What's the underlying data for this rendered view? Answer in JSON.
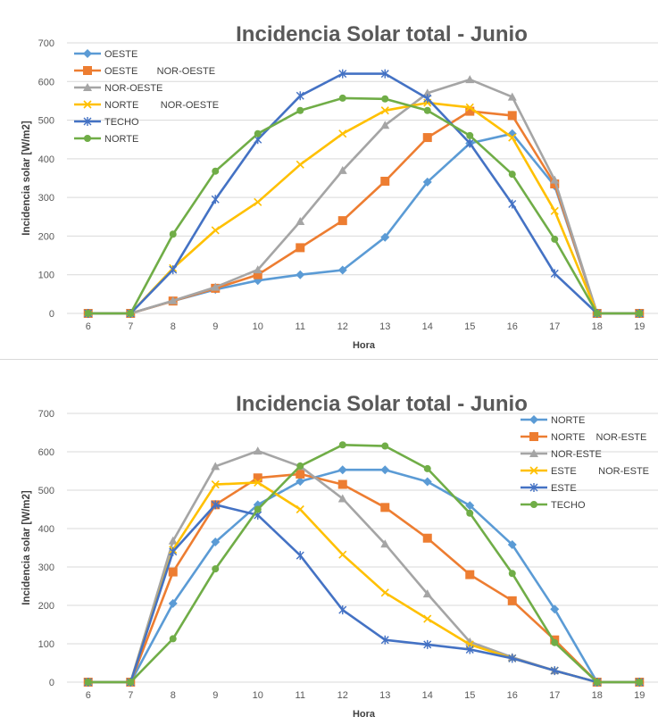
{
  "chart_data": [
    {
      "type": "line",
      "title": "Incidencia Solar total - Junio",
      "xlabel": "Hora",
      "ylabel": "Incidencia solar [W/m2]",
      "categories": [
        6,
        7,
        8,
        9,
        10,
        11,
        12,
        13,
        14,
        15,
        16,
        17,
        18,
        19
      ],
      "ylim": [
        0,
        700
      ],
      "yticks": [
        0,
        100,
        200,
        300,
        400,
        500,
        600,
        700
      ],
      "grid": true,
      "legend_position": "top-left",
      "series": [
        {
          "name": "OESTE",
          "color": "#5b9bd5",
          "marker": "diamond",
          "values": [
            0,
            0,
            32,
            62,
            85,
            100,
            112,
            197,
            340,
            440,
            465,
            330,
            0,
            0
          ]
        },
        {
          "name": "OESTE       NOR-OESTE",
          "color": "#ed7d31",
          "marker": "square",
          "values": [
            0,
            0,
            32,
            65,
            100,
            170,
            240,
            342,
            455,
            523,
            512,
            335,
            0,
            0
          ]
        },
        {
          "name": "NOR-OESTE",
          "color": "#a5a5a5",
          "marker": "triangle",
          "values": [
            0,
            0,
            33,
            68,
            113,
            238,
            370,
            487,
            570,
            605,
            560,
            345,
            0,
            0
          ]
        },
        {
          "name": "NORTE        NOR-OESTE",
          "color": "#ffc000",
          "marker": "x",
          "values": [
            0,
            0,
            117,
            215,
            288,
            385,
            465,
            525,
            545,
            533,
            455,
            265,
            0,
            0
          ]
        },
        {
          "name": "TECHO",
          "color": "#4472c4",
          "marker": "star",
          "values": [
            0,
            0,
            113,
            295,
            450,
            563,
            620,
            620,
            556,
            440,
            283,
            103,
            0,
            0
          ]
        },
        {
          "name": "NORTE",
          "color": "#70ad47",
          "marker": "circle",
          "values": [
            0,
            0,
            205,
            368,
            465,
            525,
            557,
            555,
            525,
            460,
            360,
            192,
            0,
            0
          ]
        }
      ]
    },
    {
      "type": "line",
      "title": "Incidencia Solar total - Junio",
      "xlabel": "Hora",
      "ylabel": "Incidencia solar [W/m2]",
      "categories": [
        6,
        7,
        8,
        9,
        10,
        11,
        12,
        13,
        14,
        15,
        16,
        17,
        18,
        19
      ],
      "ylim": [
        0,
        700
      ],
      "yticks": [
        0,
        100,
        200,
        300,
        400,
        500,
        600,
        700
      ],
      "grid": true,
      "legend_position": "top-right",
      "series": [
        {
          "name": "NORTE",
          "color": "#5b9bd5",
          "marker": "diamond",
          "values": [
            0,
            0,
            205,
            365,
            462,
            523,
            553,
            553,
            522,
            460,
            358,
            190,
            0,
            0
          ]
        },
        {
          "name": "NORTE    NOR-ESTE",
          "color": "#ed7d31",
          "marker": "square",
          "values": [
            0,
            0,
            287,
            462,
            532,
            542,
            515,
            455,
            375,
            280,
            212,
            110,
            0,
            0
          ]
        },
        {
          "name": "NOR-ESTE",
          "color": "#a5a5a5",
          "marker": "triangle",
          "values": [
            0,
            0,
            368,
            562,
            602,
            562,
            478,
            360,
            230,
            105,
            65,
            30,
            0,
            0
          ]
        },
        {
          "name": "ESTE        NOR-ESTE",
          "color": "#ffc000",
          "marker": "x",
          "values": [
            0,
            0,
            345,
            515,
            520,
            450,
            332,
            233,
            165,
            98,
            62,
            30,
            0,
            0
          ]
        },
        {
          "name": "ESTE",
          "color": "#4472c4",
          "marker": "star",
          "values": [
            0,
            0,
            340,
            462,
            435,
            330,
            188,
            110,
            98,
            85,
            62,
            30,
            0,
            0
          ]
        },
        {
          "name": "TECHO",
          "color": "#70ad47",
          "marker": "circle",
          "values": [
            0,
            0,
            113,
            295,
            450,
            563,
            618,
            615,
            556,
            440,
            283,
            103,
            0,
            0
          ]
        }
      ]
    }
  ]
}
